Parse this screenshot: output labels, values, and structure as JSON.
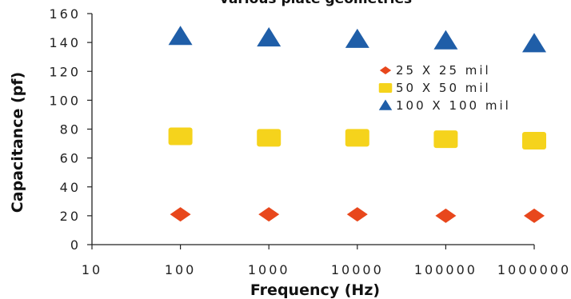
{
  "chart_data": {
    "type": "scatter",
    "title": "various plate geometries",
    "xlabel": "Frequency (Hz)",
    "ylabel": "Capacitance (pf)",
    "x_scale": "log",
    "xlim": [
      10,
      1000000
    ],
    "ylim": [
      0,
      160
    ],
    "x_tick_labels": [
      "10",
      "100",
      "1000",
      "10000",
      "100000",
      "1000000"
    ],
    "y_tick_labels": [
      "0",
      "20",
      "40",
      "60",
      "80",
      "100",
      "120",
      "140",
      "160"
    ],
    "grid": false,
    "legend_position": "right",
    "series": [
      {
        "name": "25 X 25 mil",
        "marker": "diamond",
        "color": "#e8471c",
        "x": [
          100,
          1000,
          10000,
          100000,
          1000000
        ],
        "y": [
          21,
          21,
          21,
          20,
          20
        ]
      },
      {
        "name": "50 X 50 mil",
        "marker": "square",
        "color": "#f5d31c",
        "x": [
          100,
          1000,
          10000,
          100000,
          1000000
        ],
        "y": [
          75,
          74,
          74,
          73,
          72
        ]
      },
      {
        "name": "100 X 100 mil",
        "marker": "triangle",
        "color": "#1f5ea8",
        "x": [
          100,
          1000,
          10000,
          100000,
          1000000
        ],
        "y": [
          144,
          143,
          142,
          141,
          139
        ]
      }
    ]
  }
}
